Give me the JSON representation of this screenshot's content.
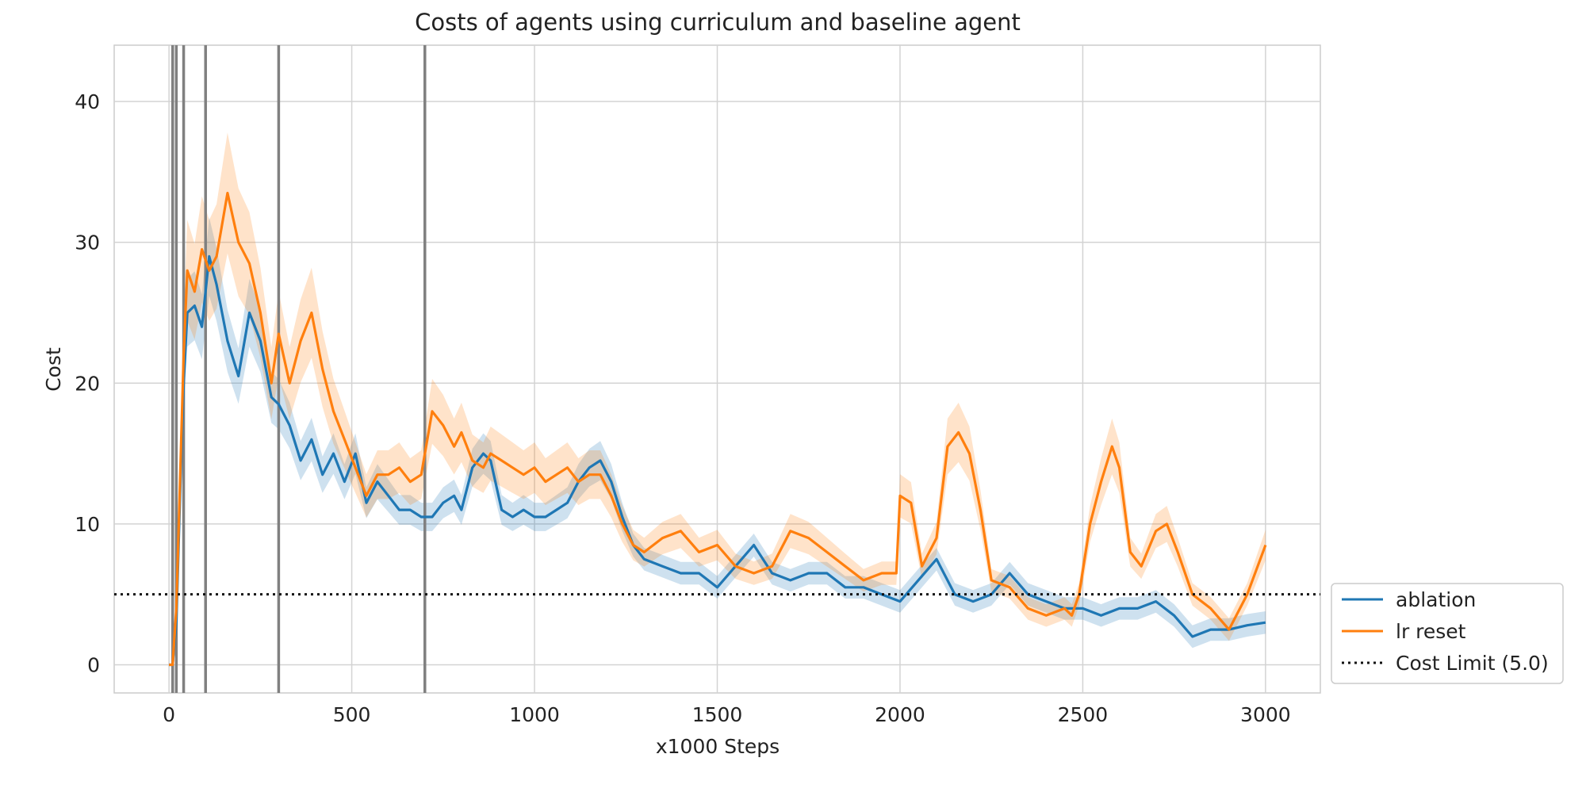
{
  "chart_data": {
    "type": "line",
    "title": "Costs of agents using curriculum and baseline agent",
    "xlabel": "x1000 Steps",
    "ylabel": "Cost",
    "xlim": [
      -150,
      3150
    ],
    "ylim": [
      -2,
      44
    ],
    "xticks": [
      0,
      500,
      1000,
      1500,
      2000,
      2500,
      3000
    ],
    "yticks": [
      0,
      10,
      20,
      30,
      40
    ],
    "grid": true,
    "legend_position": "outside-right-bottom",
    "curriculum_lines": [
      10,
      20,
      40,
      100,
      300,
      700
    ],
    "curriculum_line_color": "#808080",
    "cost_limit": {
      "value": 5.0,
      "label": "Cost Limit (5.0)",
      "color": "#111111",
      "style": "dotted"
    },
    "series": [
      {
        "name": "ablation",
        "color": "#1f77b4",
        "x": [
          0,
          10,
          20,
          30,
          40,
          50,
          70,
          90,
          110,
          130,
          160,
          190,
          220,
          250,
          280,
          300,
          330,
          360,
          390,
          420,
          450,
          480,
          510,
          540,
          570,
          600,
          630,
          660,
          690,
          720,
          750,
          780,
          800,
          830,
          860,
          880,
          910,
          940,
          970,
          1000,
          1030,
          1060,
          1090,
          1120,
          1150,
          1180,
          1210,
          1240,
          1270,
          1300,
          1350,
          1400,
          1450,
          1500,
          1550,
          1600,
          1650,
          1700,
          1750,
          1800,
          1850,
          1900,
          1950,
          2000,
          2050,
          2100,
          2150,
          2200,
          2250,
          2300,
          2350,
          2400,
          2450,
          2500,
          2550,
          2600,
          2650,
          2700,
          2750,
          2800,
          2850,
          2900,
          2950,
          3000
        ],
        "y": [
          0,
          0,
          3,
          12,
          20,
          25,
          25.5,
          24,
          29,
          27,
          23,
          20.5,
          25,
          23,
          19,
          18.5,
          17,
          14.5,
          16,
          13.5,
          15,
          13,
          15,
          11.5,
          13,
          12,
          11,
          11,
          10.5,
          10.5,
          11.5,
          12,
          11,
          14,
          15,
          14.5,
          11,
          10.5,
          11,
          10.5,
          10.5,
          11,
          11.5,
          13,
          14,
          14.5,
          13,
          10.5,
          8.5,
          7.5,
          7,
          6.5,
          6.5,
          5.5,
          7,
          8.5,
          6.5,
          6,
          6.5,
          6.5,
          5.5,
          5.5,
          5,
          4.5,
          6,
          7.5,
          5,
          4.5,
          5,
          6.5,
          5,
          4.5,
          4,
          4,
          3.5,
          4,
          4,
          4.5,
          3.5,
          2,
          2.5,
          2.5,
          2.8,
          3
        ]
      },
      {
        "name": "lr reset",
        "color": "#ff7f0e",
        "x": [
          0,
          10,
          20,
          30,
          40,
          50,
          70,
          90,
          110,
          130,
          160,
          190,
          220,
          250,
          280,
          300,
          330,
          360,
          390,
          420,
          450,
          480,
          510,
          540,
          570,
          600,
          630,
          660,
          690,
          720,
          750,
          780,
          800,
          830,
          860,
          880,
          910,
          940,
          970,
          1000,
          1030,
          1060,
          1090,
          1120,
          1150,
          1180,
          1210,
          1240,
          1270,
          1300,
          1350,
          1400,
          1450,
          1500,
          1550,
          1600,
          1650,
          1700,
          1750,
          1800,
          1850,
          1900,
          1950,
          1990,
          2000,
          2030,
          2060,
          2100,
          2130,
          2160,
          2190,
          2220,
          2250,
          2300,
          2350,
          2400,
          2450,
          2470,
          2490,
          2520,
          2550,
          2580,
          2600,
          2630,
          2660,
          2700,
          2730,
          2760,
          2800,
          2850,
          2900,
          2950,
          3000
        ],
        "y": [
          0,
          0,
          4,
          13,
          22,
          28,
          26.5,
          29.5,
          28,
          29,
          33.5,
          30,
          28.5,
          25,
          20,
          23.5,
          20,
          23,
          25,
          21,
          18,
          16,
          14,
          12,
          13.5,
          13.5,
          14,
          13,
          13.5,
          18,
          17,
          15.5,
          16.5,
          14.5,
          14,
          15,
          14.5,
          14,
          13.5,
          14,
          13,
          13.5,
          14,
          13,
          13.5,
          13.5,
          12,
          10,
          8.5,
          8,
          9,
          9.5,
          8,
          8.5,
          7,
          6.5,
          7,
          9.5,
          9,
          8,
          7,
          6,
          6.5,
          6.5,
          12,
          11.5,
          7,
          9,
          15.5,
          16.5,
          15,
          11,
          6,
          5.5,
          4,
          3.5,
          4,
          3.5,
          5,
          10,
          13,
          15.5,
          14,
          8,
          7,
          9.5,
          10,
          8,
          5,
          4,
          2.5,
          5,
          8.5
        ]
      }
    ]
  },
  "legend": {
    "items": [
      {
        "label": "ablation",
        "color": "#1f77b4",
        "style": "solid"
      },
      {
        "label": "lr reset",
        "color": "#ff7f0e",
        "style": "solid"
      },
      {
        "label": "Cost Limit (5.0)",
        "color": "#111111",
        "style": "dotted"
      }
    ]
  }
}
